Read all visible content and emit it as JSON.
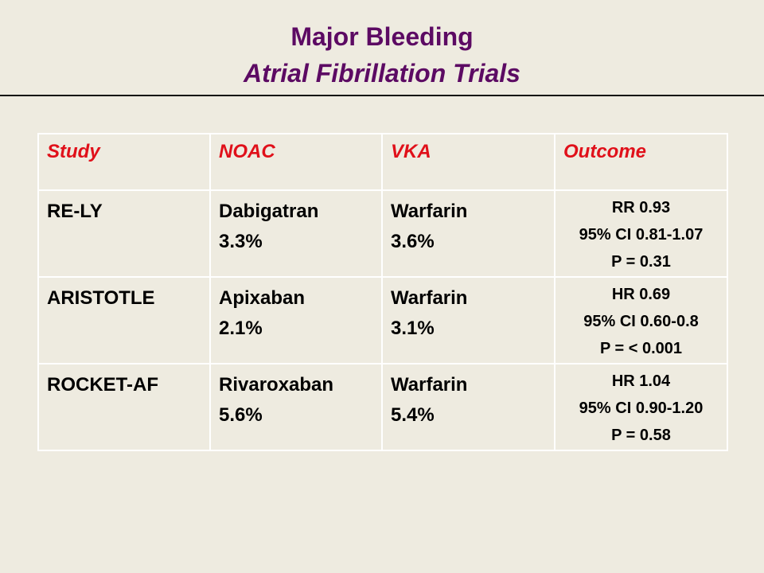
{
  "title": {
    "line1": "Major Bleeding",
    "line2": "Atrial Fibrillation Trials"
  },
  "table": {
    "headers": [
      "Study",
      "NOAC",
      "VKA",
      "Outcome"
    ],
    "rows": [
      {
        "study": "RE-LY",
        "noac_drug": "Dabigatran",
        "noac_rate": "3.3%",
        "vka_drug": "Warfarin",
        "vka_rate": "3.6%",
        "outcome": [
          "RR 0.93",
          "95% CI 0.81-1.07",
          "P = 0.31"
        ]
      },
      {
        "study": "ARISTOTLE",
        "noac_drug": "Apixaban",
        "noac_rate": "2.1%",
        "vka_drug": "Warfarin",
        "vka_rate": "3.1%",
        "outcome": [
          "HR 0.69",
          "95% CI 0.60-0.8",
          "P = < 0.001"
        ]
      },
      {
        "study": "ROCKET-AF",
        "noac_drug": "Rivaroxaban",
        "noac_rate": "5.6%",
        "vka_drug": "Warfarin",
        "vka_rate": "5.4%",
        "outcome": [
          "HR 1.04",
          "95% CI 0.90-1.20",
          "P = 0.58"
        ]
      }
    ]
  },
  "colors": {
    "title": "#5c0a63",
    "header_text": "#e0101a",
    "background": "#eeebe0"
  }
}
